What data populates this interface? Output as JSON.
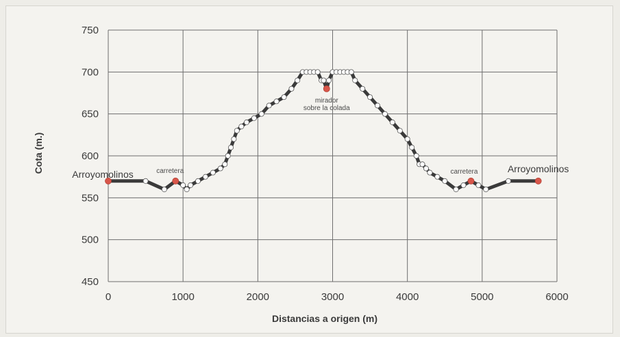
{
  "chart_data": {
    "type": "line",
    "xlabel": "Distancias a origen (m)",
    "ylabel": "Cota (m.)",
    "xlim": [
      0,
      6000
    ],
    "ylim": [
      450,
      750
    ],
    "xticks": [
      0,
      1000,
      2000,
      3000,
      4000,
      5000,
      6000
    ],
    "yticks": [
      450,
      500,
      550,
      600,
      650,
      700,
      750
    ],
    "grid": true,
    "colors": {
      "line": "#3a3a3a",
      "marker_fill": "#ffffff",
      "highlight": "#d9564a"
    },
    "series": [
      {
        "x": [
          0,
          500,
          750,
          900,
          1000,
          1050,
          1100,
          1200,
          1300,
          1400,
          1500,
          1560,
          1600,
          1640,
          1680,
          1720,
          1780,
          1850,
          1950,
          2050,
          2150,
          2250,
          2350,
          2450,
          2530,
          2600,
          2650,
          2700,
          2750,
          2800,
          2850,
          2880,
          2920,
          2950,
          3000,
          3050,
          3100,
          3150,
          3200,
          3250,
          3300,
          3400,
          3500,
          3600,
          3700,
          3800,
          3900,
          4000,
          4060,
          4120,
          4160,
          4200,
          4250,
          4300,
          4400,
          4500,
          4650,
          4750,
          4850,
          4950,
          5050,
          5350,
          5750
        ],
        "y": [
          570,
          570,
          560,
          570,
          565,
          560,
          565,
          570,
          575,
          580,
          585,
          590,
          600,
          610,
          620,
          630,
          635,
          640,
          645,
          650,
          660,
          665,
          670,
          680,
          690,
          700,
          700,
          700,
          700,
          700,
          690,
          690,
          680,
          690,
          700,
          700,
          700,
          700,
          700,
          700,
          690,
          680,
          670,
          660,
          650,
          640,
          630,
          620,
          610,
          600,
          590,
          590,
          585,
          580,
          575,
          570,
          560,
          565,
          570,
          565,
          560,
          570,
          570
        ]
      }
    ],
    "highlight_points": [
      {
        "x": 0,
        "y": 570
      },
      {
        "x": 900,
        "y": 570
      },
      {
        "x": 2920,
        "y": 680
      },
      {
        "x": 4850,
        "y": 570
      },
      {
        "x": 5750,
        "y": 570
      }
    ],
    "annotations": [
      {
        "text": "Arroyomolinos",
        "x": 0,
        "y": 570,
        "size": "large"
      },
      {
        "text": "carretera",
        "x": 900,
        "y": 570,
        "size": "small"
      },
      {
        "text": "mirador",
        "x": 2920,
        "y": 680,
        "size": "small"
      },
      {
        "text": "sobre la colada",
        "x": 2920,
        "y": 680,
        "size": "small"
      },
      {
        "text": "carretera",
        "x": 4850,
        "y": 570,
        "size": "small"
      },
      {
        "text": "Arroyomolinos",
        "x": 5750,
        "y": 570,
        "size": "large"
      }
    ]
  }
}
